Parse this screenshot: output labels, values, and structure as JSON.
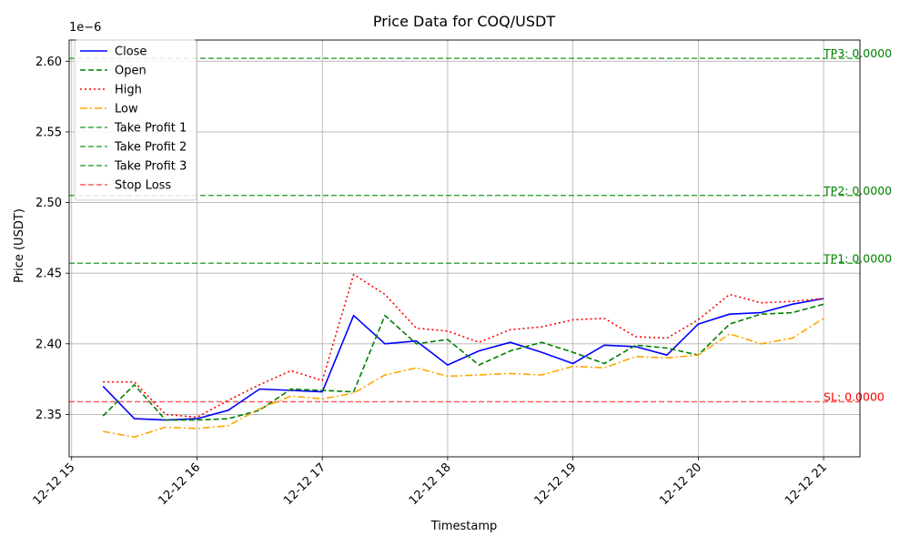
{
  "chart_data": {
    "type": "line",
    "title": "Price Data for COQ/USDT",
    "xlabel": "Timestamp",
    "ylabel": "Price (USDT)",
    "y_offset_label": "1e−6",
    "ylim": [
      2.32,
      2.615
    ],
    "xlim": [
      14.98,
      21.29
    ],
    "grid": true,
    "legend_position": "upper-left",
    "x_ticks": [
      {
        "value": 15,
        "label": "12-12 15"
      },
      {
        "value": 16,
        "label": "12-12 16"
      },
      {
        "value": 17,
        "label": "12-12 17"
      },
      {
        "value": 18,
        "label": "12-12 18"
      },
      {
        "value": 19,
        "label": "12-12 19"
      },
      {
        "value": 20,
        "label": "12-12 20"
      },
      {
        "value": 21,
        "label": "12-12 21"
      }
    ],
    "y_ticks": [
      {
        "value": 2.35,
        "label": "2.35"
      },
      {
        "value": 2.4,
        "label": "2.40"
      },
      {
        "value": 2.45,
        "label": "2.45"
      },
      {
        "value": 2.5,
        "label": "2.50"
      },
      {
        "value": 2.55,
        "label": "2.55"
      },
      {
        "value": 2.6,
        "label": "2.60"
      }
    ],
    "x": [
      15.25,
      15.5,
      15.75,
      16.0,
      16.25,
      16.5,
      16.75,
      17.0,
      17.25,
      17.5,
      17.75,
      18.0,
      18.25,
      18.5,
      18.75,
      19.0,
      19.25,
      19.5,
      19.75,
      20.0,
      20.25,
      20.5,
      20.75,
      21.0
    ],
    "series": [
      {
        "name": "Close",
        "color": "#0000ff",
        "style": "solid",
        "values": [
          2.37,
          2.347,
          2.346,
          2.347,
          2.353,
          2.368,
          2.367,
          2.366,
          2.42,
          2.4,
          2.402,
          2.385,
          2.395,
          2.401,
          2.394,
          2.386,
          2.399,
          2.398,
          2.392,
          2.414,
          2.421,
          2.422,
          2.428,
          2.432
        ]
      },
      {
        "name": "Open",
        "color": "#008000",
        "style": "dashed",
        "values": [
          2.349,
          2.371,
          2.346,
          2.346,
          2.347,
          2.353,
          2.368,
          2.367,
          2.366,
          2.42,
          2.4,
          2.403,
          2.385,
          2.395,
          2.401,
          2.394,
          2.386,
          2.399,
          2.397,
          2.392,
          2.414,
          2.421,
          2.422,
          2.428
        ]
      },
      {
        "name": "High",
        "color": "#ff0000",
        "style": "dotted",
        "values": [
          2.373,
          2.373,
          2.35,
          2.348,
          2.36,
          2.371,
          2.381,
          2.374,
          2.449,
          2.435,
          2.411,
          2.409,
          2.401,
          2.41,
          2.412,
          2.417,
          2.418,
          2.405,
          2.404,
          2.417,
          2.435,
          2.429,
          2.43,
          2.432
        ]
      },
      {
        "name": "Low",
        "color": "#ffa500",
        "style": "dashdot",
        "values": [
          2.338,
          2.334,
          2.341,
          2.34,
          2.342,
          2.354,
          2.363,
          2.361,
          2.365,
          2.378,
          2.383,
          2.377,
          2.378,
          2.379,
          2.378,
          2.384,
          2.383,
          2.391,
          2.39,
          2.392,
          2.407,
          2.4,
          2.404,
          2.418
        ]
      }
    ],
    "levels": [
      {
        "name": "Take Profit 1",
        "value": 2.457,
        "color": "#2ca02c",
        "label": "TP1: 0.0000",
        "label_color": "#008000"
      },
      {
        "name": "Take Profit 2",
        "value": 2.505,
        "color": "#2ca02c",
        "label": "TP2: 0.0000",
        "label_color": "#008000"
      },
      {
        "name": "Take Profit 3",
        "value": 2.602,
        "color": "#2ca02c",
        "label": "TP3: 0.0000",
        "label_color": "#008000"
      },
      {
        "name": "Stop Loss",
        "value": 2.359,
        "color": "#ff4d4d",
        "label": "SL: 0.0000",
        "label_color": "#ff0000"
      }
    ]
  }
}
